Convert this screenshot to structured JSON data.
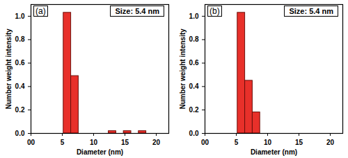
{
  "chart_data": [
    {
      "type": "histogram",
      "title": "(a)",
      "annotation": "Size: 5.4 nm",
      "xlabel": "Diameter (nm)",
      "ylabel": "Number weight intensity",
      "bins": [
        5.2,
        6.4,
        7.6,
        8.8,
        10.0,
        11.2,
        12.4,
        13.6,
        14.8,
        16.0,
        17.2,
        18.4
      ],
      "values": [
        1.03,
        0.49,
        0,
        0,
        0,
        0,
        0.02,
        0,
        0.02,
        0,
        0.02
      ],
      "color": "#e8302a",
      "xlim": [
        0,
        22
      ],
      "xticks": [
        {
          "value": 0,
          "label": "00"
        },
        5,
        10,
        15,
        20
      ],
      "ylim": [
        0,
        1.1
      ],
      "yticks": [
        {
          "value": 0,
          "label": "0.0"
        },
        0.2,
        0.4,
        0.6,
        0.8,
        {
          "value": 1,
          "label": "1.0"
        }
      ]
    },
    {
      "type": "histogram",
      "title": "(b)",
      "annotation": "Size: 5.4 nm",
      "xlabel": "Diameter (nm)",
      "ylabel": "Number weight intensity",
      "bins": [
        5.2,
        6.4,
        7.6,
        8.8
      ],
      "values": [
        1.03,
        0.45,
        0.18
      ],
      "color": "#e8302a",
      "xlim": [
        0,
        22
      ],
      "xticks": [
        {
          "value": 0,
          "label": "00"
        },
        5,
        10,
        15,
        20
      ],
      "ylim": [
        0,
        1.1
      ],
      "yticks": [
        {
          "value": 0,
          "label": "0.0"
        },
        0.2,
        0.4,
        0.6,
        0.8,
        {
          "value": 1,
          "label": "1.0"
        }
      ]
    }
  ]
}
